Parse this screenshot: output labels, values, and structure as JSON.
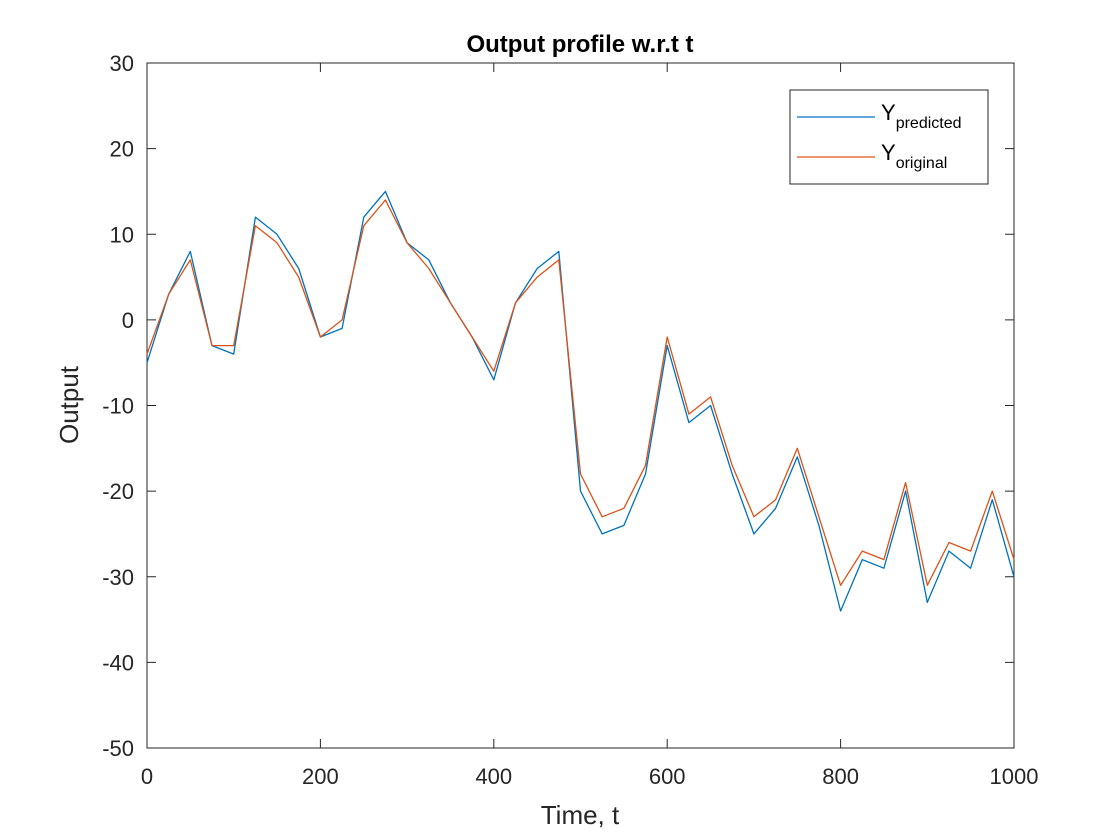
{
  "chart_data": {
    "type": "line",
    "title": "Output profile w.r.t t",
    "xlabel": "Time, t",
    "ylabel": "Output",
    "xlim": [
      0,
      1000
    ],
    "ylim": [
      -50,
      30
    ],
    "x_ticks": [
      "0",
      "200",
      "400",
      "600",
      "800",
      "1000"
    ],
    "y_ticks": [
      "30",
      "20",
      "10",
      "0",
      "-10",
      "-20",
      "-30",
      "-40",
      "-50"
    ],
    "grid": false,
    "legend_position": "top-right",
    "x": [
      0,
      25,
      50,
      75,
      100,
      125,
      150,
      175,
      200,
      225,
      250,
      275,
      300,
      325,
      350,
      375,
      400,
      425,
      450,
      475,
      500,
      525,
      550,
      575,
      600,
      625,
      650,
      675,
      700,
      725,
      750,
      775,
      800,
      825,
      850,
      875,
      900,
      925,
      950,
      975,
      1000
    ],
    "series": [
      {
        "name": "Y",
        "name_subscript": "predicted",
        "color": "#0072BD",
        "values": [
          -5,
          3,
          8,
          -3,
          -4,
          12,
          10,
          6,
          -2,
          -1,
          12,
          15,
          9,
          7,
          2,
          -2,
          -7,
          2,
          6,
          8,
          -20,
          -25,
          -24,
          -18,
          -3,
          -12,
          -10,
          -18,
          -25,
          -22,
          -16,
          -24,
          -34,
          -28,
          -29,
          -20,
          -33,
          -27,
          -29,
          -21,
          -30
        ]
      },
      {
        "name": "Y",
        "name_subscript": "original",
        "color": "#D95319",
        "values": [
          -4,
          3,
          7,
          -3,
          -3,
          11,
          9,
          5,
          -2,
          0,
          11,
          14,
          9,
          6,
          2,
          -2,
          -6,
          2,
          5,
          7,
          -18,
          -23,
          -22,
          -17,
          -2,
          -11,
          -9,
          -17,
          -23,
          -21,
          -15,
          -23,
          -31,
          -27,
          -28,
          -19,
          -31,
          -26,
          -27,
          -20,
          -28
        ]
      }
    ]
  }
}
